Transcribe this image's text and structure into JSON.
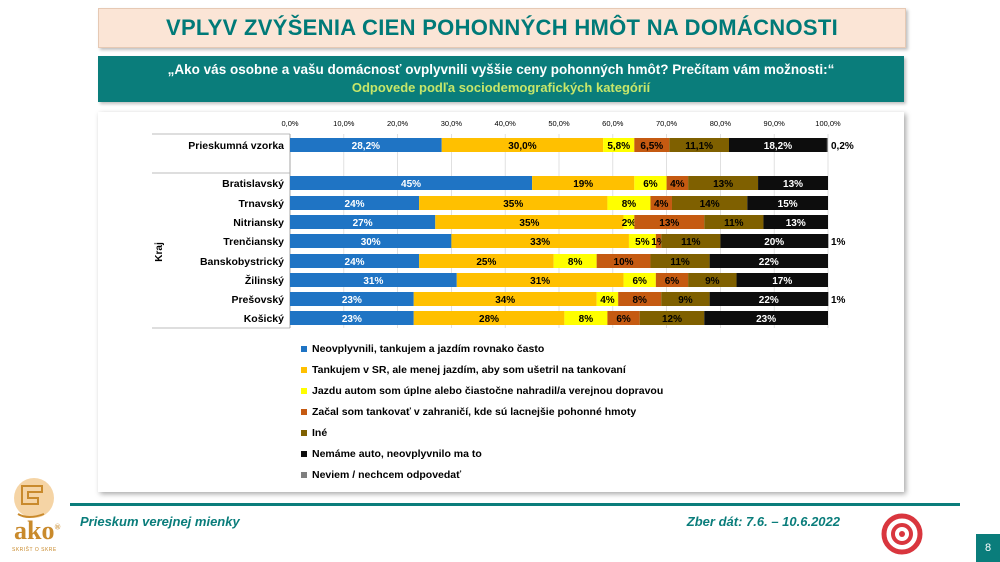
{
  "header": {
    "title": "VPLYV ZVÝŠENIA CIEN POHONNÝCH HMÔT NA DOMÁCNOSTI",
    "question": "„Ako vás osobne a vašu domácnosť ovplyvnili vyššie ceny pohonných hmôt? Prečítam vám možnosti:“",
    "subtitle": "Odpovede podľa sociodemografických kategórií"
  },
  "footer": {
    "left_text": "Prieskum verejnej mienky",
    "right_text": "Zber dát: 7.6. – 10.6.2022",
    "page_number": "8"
  },
  "logo": {
    "text": "ako",
    "registered": "®",
    "tagline": "SKRIŠT O SKRE"
  },
  "chart_data": {
    "type": "bar",
    "orientation": "horizontal-stacked-100",
    "xlim": [
      0,
      100
    ],
    "xticks": [
      "0,0%",
      "10,0%",
      "20,0%",
      "30,0%",
      "40,0%",
      "50,0%",
      "60,0%",
      "70,0%",
      "80,0%",
      "90,0%",
      "100,0%"
    ],
    "group_label": "Kraj",
    "categories": [
      "Prieskumná vzorka",
      "Bratislavský",
      "Trnavský",
      "Nitriansky",
      "Trenčiansky",
      "Banskobystrický",
      "Žilinský",
      "Prešovský",
      "Košický"
    ],
    "series": [
      {
        "name": "Neovplyvnili, tankujem a jazdím rovnako často",
        "color": "#1f74c4",
        "label_color": "#ffffff",
        "values": [
          28.2,
          45,
          24,
          27,
          30,
          24,
          31,
          23,
          23
        ],
        "labels": [
          "28,2%",
          "45%",
          "24%",
          "27%",
          "30%",
          "24%",
          "31%",
          "23%",
          "23%"
        ]
      },
      {
        "name": "Tankujem v SR, ale menej jazdím, aby som ušetril na tankovaní",
        "color": "#ffc000",
        "label_color": "#000000",
        "values": [
          30.0,
          19,
          35,
          35,
          33,
          25,
          31,
          34,
          28
        ],
        "labels": [
          "30,0%",
          "19%",
          "35%",
          "35%",
          "33%",
          "25%",
          "31%",
          "34%",
          "28%"
        ]
      },
      {
        "name": "Jazdu autom som úplne alebo čiastočne nahradil/a verejnou dopravou",
        "color": "#ffff00",
        "label_color": "#000000",
        "values": [
          5.8,
          6,
          8,
          2,
          5,
          8,
          6,
          4,
          8
        ],
        "labels": [
          "5,8%",
          "6%",
          "8%",
          "2%",
          "5%",
          "8%",
          "6%",
          "4%",
          "8%"
        ]
      },
      {
        "name": "Začal som tankovať v zahraničí, kde sú lacnejšie pohonné hmoty",
        "color": "#c55a11",
        "label_color": "#000000",
        "values": [
          6.5,
          4,
          4,
          13,
          1,
          10,
          6,
          8,
          6
        ],
        "labels": [
          "6,5%",
          "4%",
          "4%",
          "13%",
          "1%",
          "10%",
          "6%",
          "8%",
          "6%"
        ]
      },
      {
        "name": "Iné",
        "color": "#7f6000",
        "label_color": "#000000",
        "values": [
          11.1,
          13,
          14,
          11,
          11,
          11,
          9,
          9,
          12
        ],
        "labels": [
          "11,1%",
          "13%",
          "14%",
          "11%",
          "11%",
          "11%",
          "9%",
          "9%",
          "12%"
        ]
      },
      {
        "name": "Nemáme auto, neovplyvnilo ma to",
        "color": "#0d0d0d",
        "label_color": "#ffffff",
        "values": [
          18.2,
          13,
          15,
          13,
          20,
          22,
          17,
          22,
          23
        ],
        "labels": [
          "18,2%",
          "13%",
          "15%",
          "13%",
          "20%",
          "22%",
          "17%",
          "22%",
          "23%"
        ]
      },
      {
        "name": "Neviem / nechcem odpovedať",
        "color": "#7f7f7f",
        "label_color": "#000000",
        "values": [
          0.2,
          0,
          0,
          0,
          1,
          0,
          0,
          1,
          0
        ],
        "labels": [
          "0,2%",
          "",
          "",
          "",
          "1%",
          "",
          "",
          "1%",
          ""
        ]
      }
    ],
    "legend_position": "bottom-left",
    "grid": true
  }
}
